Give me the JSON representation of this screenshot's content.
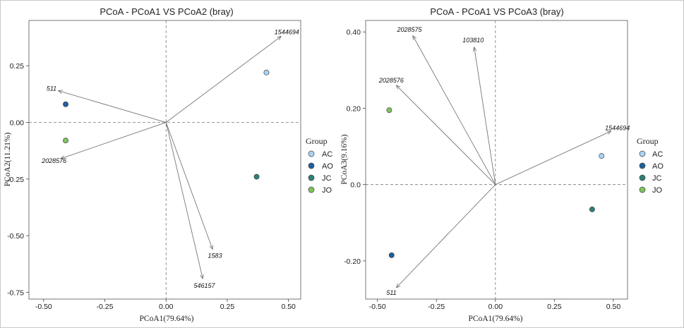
{
  "colors": {
    "AC": "#a9d4f5",
    "AO": "#1f5f9e",
    "JC": "#2e7f78",
    "JO": "#7ec35f",
    "arrow": "#777777"
  },
  "legend": {
    "title": "Group",
    "items": [
      "AC",
      "AO",
      "JC",
      "JO"
    ]
  },
  "chart_data": [
    {
      "type": "scatter",
      "title": "PCoA - PCoA1 VS PCoA2 (bray)",
      "xlabel": "PCoA1(79.64%)",
      "ylabel": "PCoA2(11.21%)",
      "xlim": [
        -0.56,
        0.55
      ],
      "ylim": [
        -0.78,
        0.45
      ],
      "xticks": [
        "-0.50",
        "-0.25",
        "0.00",
        "0.25",
        "0.50"
      ],
      "xtick_values": [
        -0.5,
        -0.25,
        0,
        0.25,
        0.5
      ],
      "yticks": [
        "0.25",
        "0.00",
        "-0.25",
        "-0.50",
        "-0.75"
      ],
      "ytick_values": [
        0.25,
        0,
        -0.25,
        -0.5,
        -0.75
      ],
      "points": [
        {
          "group": "AC",
          "x": 0.41,
          "y": 0.22
        },
        {
          "group": "AO",
          "x": -0.41,
          "y": 0.08
        },
        {
          "group": "JC",
          "x": 0.37,
          "y": -0.24
        },
        {
          "group": "JO",
          "x": -0.41,
          "y": -0.08
        }
      ],
      "vectors": [
        {
          "label": "1544694",
          "x": 0.47,
          "y": 0.38
        },
        {
          "label": "511",
          "x": -0.44,
          "y": 0.14
        },
        {
          "label": "2028576",
          "x": -0.43,
          "y": -0.16
        },
        {
          "label": "1583",
          "x": 0.19,
          "y": -0.56
        },
        {
          "label": "546157",
          "x": 0.15,
          "y": -0.69
        }
      ]
    },
    {
      "type": "scatter",
      "title": "PCoA - PCoA1 VS PCoA3 (bray)",
      "xlabel": "PCoA1(79.64%)",
      "ylabel": "PCoA3(9.16%)",
      "xlim": [
        -0.55,
        0.56
      ],
      "ylim": [
        -0.3,
        0.43
      ],
      "xticks": [
        "-0.50",
        "-0.25",
        "0.00",
        "0.25",
        "0.50"
      ],
      "xtick_values": [
        -0.5,
        -0.25,
        0,
        0.25,
        0.5
      ],
      "yticks": [
        "0.40",
        "0.20",
        "0.0",
        "-0.20"
      ],
      "ytick_values": [
        0.4,
        0.2,
        0,
        -0.2
      ],
      "points": [
        {
          "group": "AC",
          "x": 0.45,
          "y": 0.075
        },
        {
          "group": "AO",
          "x": -0.44,
          "y": -0.185
        },
        {
          "group": "JC",
          "x": 0.41,
          "y": -0.065
        },
        {
          "group": "JO",
          "x": -0.45,
          "y": 0.195
        }
      ],
      "vectors": [
        {
          "label": "2028575",
          "x": -0.35,
          "y": 0.39
        },
        {
          "label": "103810",
          "x": -0.09,
          "y": 0.36
        },
        {
          "label": "2028576",
          "x": -0.42,
          "y": 0.26
        },
        {
          "label": "1544694",
          "x": 0.49,
          "y": 0.14
        },
        {
          "label": "511",
          "x": -0.42,
          "y": -0.27
        }
      ]
    }
  ]
}
